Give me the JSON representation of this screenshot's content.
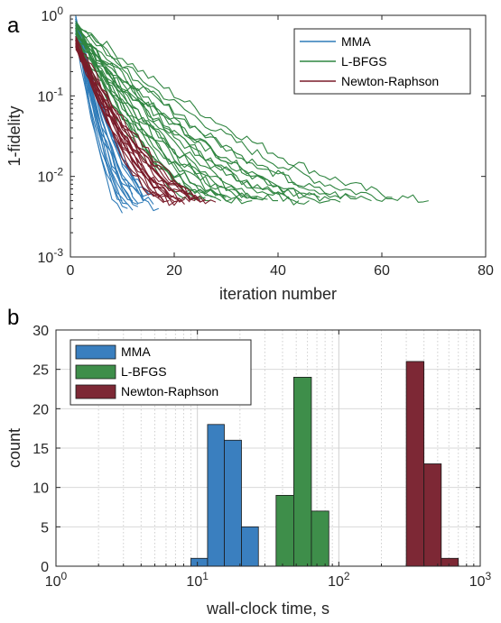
{
  "chart_data": [
    {
      "panel": "a",
      "type": "line",
      "xlabel": "iteration number",
      "ylabel": "1-fidelity",
      "xlim": [
        0,
        80
      ],
      "ylim": [
        0.001,
        1
      ],
      "yscale": "log",
      "xticks": [
        0,
        20,
        40,
        60,
        80
      ],
      "yticks": [
        {
          "base": "10",
          "exp": "0"
        },
        {
          "base": "10",
          "exp": "-1"
        },
        {
          "base": "10",
          "exp": "-2"
        },
        {
          "base": "10",
          "exp": "-3"
        }
      ],
      "grid": false,
      "legend": "top-right",
      "series": [
        {
          "name": "MMA",
          "color": "#2F7BB8",
          "curves": [
            {
              "start": 1.0,
              "iters": 10,
              "end": 0.0035
            },
            {
              "start": 0.9,
              "iters": 11,
              "end": 0.0045
            },
            {
              "start": 0.8,
              "iters": 12,
              "end": 0.006
            },
            {
              "start": 0.95,
              "iters": 13,
              "end": 0.0045
            },
            {
              "start": 0.7,
              "iters": 12,
              "end": 0.005
            },
            {
              "start": 0.85,
              "iters": 14,
              "end": 0.0055
            },
            {
              "start": 0.6,
              "iters": 11,
              "end": 0.004
            },
            {
              "start": 0.75,
              "iters": 15,
              "end": 0.006
            },
            {
              "start": 0.9,
              "iters": 16,
              "end": 0.0045
            },
            {
              "start": 0.65,
              "iters": 13,
              "end": 0.0065
            },
            {
              "start": 0.8,
              "iters": 17,
              "end": 0.004
            },
            {
              "start": 0.55,
              "iters": 10,
              "end": 0.005
            },
            {
              "start": 0.7,
              "iters": 12,
              "end": 0.0038
            },
            {
              "start": 0.85,
              "iters": 14,
              "end": 0.0048
            },
            {
              "start": 0.6,
              "iters": 16,
              "end": 0.0058
            },
            {
              "start": 1.0,
              "iters": 11,
              "end": 0.0052
            },
            {
              "start": 0.75,
              "iters": 13,
              "end": 0.0042
            },
            {
              "start": 0.9,
              "iters": 15,
              "end": 0.0065
            }
          ]
        },
        {
          "name": "L-BFGS",
          "color": "#2F8540",
          "curves": [
            {
              "start": 0.85,
              "iters": 69,
              "end": 0.005
            },
            {
              "start": 0.75,
              "iters": 62,
              "end": 0.0055
            },
            {
              "start": 0.6,
              "iters": 58,
              "end": 0.005
            },
            {
              "start": 0.8,
              "iters": 55,
              "end": 0.0055
            },
            {
              "start": 0.55,
              "iters": 52,
              "end": 0.0048
            },
            {
              "start": 0.7,
              "iters": 50,
              "end": 0.005
            },
            {
              "start": 0.65,
              "iters": 48,
              "end": 0.0055
            },
            {
              "start": 0.5,
              "iters": 46,
              "end": 0.005
            },
            {
              "start": 0.78,
              "iters": 44,
              "end": 0.005
            },
            {
              "start": 0.6,
              "iters": 42,
              "end": 0.0055
            },
            {
              "start": 0.72,
              "iters": 40,
              "end": 0.005
            },
            {
              "start": 0.45,
              "iters": 38,
              "end": 0.0052
            },
            {
              "start": 0.68,
              "iters": 36,
              "end": 0.0055
            },
            {
              "start": 0.58,
              "iters": 35,
              "end": 0.005
            },
            {
              "start": 0.8,
              "iters": 34,
              "end": 0.0055
            },
            {
              "start": 0.52,
              "iters": 33,
              "end": 0.005
            },
            {
              "start": 0.7,
              "iters": 31,
              "end": 0.0052
            },
            {
              "start": 0.62,
              "iters": 30,
              "end": 0.0055
            },
            {
              "start": 0.48,
              "iters": 29,
              "end": 0.005
            },
            {
              "start": 0.75,
              "iters": 28,
              "end": 0.0055
            },
            {
              "start": 0.55,
              "iters": 27,
              "end": 0.005
            },
            {
              "start": 0.66,
              "iters": 26,
              "end": 0.0055
            },
            {
              "start": 0.72,
              "iters": 25,
              "end": 0.006
            },
            {
              "start": 0.5,
              "iters": 24,
              "end": 0.0055
            }
          ]
        },
        {
          "name": "Newton-Raphson",
          "color": "#7A1C2A",
          "curves": [
            {
              "start": 0.5,
              "iters": 18,
              "end": 0.005
            },
            {
              "start": 0.45,
              "iters": 19,
              "end": 0.0055
            },
            {
              "start": 0.55,
              "iters": 20,
              "end": 0.0048
            },
            {
              "start": 0.4,
              "iters": 21,
              "end": 0.005
            },
            {
              "start": 0.5,
              "iters": 22,
              "end": 0.0052
            },
            {
              "start": 0.42,
              "iters": 23,
              "end": 0.0048
            },
            {
              "start": 0.48,
              "iters": 24,
              "end": 0.0055
            },
            {
              "start": 0.52,
              "iters": 25,
              "end": 0.005
            },
            {
              "start": 0.38,
              "iters": 26,
              "end": 0.0052
            },
            {
              "start": 0.46,
              "iters": 28,
              "end": 0.0048
            },
            {
              "start": 0.5,
              "iters": 20,
              "end": 0.0058
            },
            {
              "start": 0.44,
              "iters": 22,
              "end": 0.0045
            },
            {
              "start": 0.5,
              "iters": 19,
              "end": 0.005
            },
            {
              "start": 0.47,
              "iters": 21,
              "end": 0.0053
            },
            {
              "start": 0.43,
              "iters": 24,
              "end": 0.005
            },
            {
              "start": 0.49,
              "iters": 18,
              "end": 0.0047
            },
            {
              "start": 0.41,
              "iters": 23,
              "end": 0.0056
            },
            {
              "start": 0.53,
              "iters": 26,
              "end": 0.0051
            }
          ]
        }
      ]
    },
    {
      "panel": "b",
      "type": "bar",
      "subtype": "histogram",
      "xlabel": "wall-clock time, s",
      "ylabel": "count",
      "xscale": "log",
      "xlim": [
        1,
        1000
      ],
      "ylim": [
        0,
        30
      ],
      "yticks": [
        0,
        5,
        10,
        15,
        20,
        25,
        30
      ],
      "xticks": [
        {
          "base": "10",
          "exp": "0"
        },
        {
          "base": "10",
          "exp": "1"
        },
        {
          "base": "10",
          "exp": "2"
        },
        {
          "base": "10",
          "exp": "3"
        }
      ],
      "grid": true,
      "legend": "top-left",
      "series": [
        {
          "name": "MMA",
          "color": "#3A7FBF",
          "bins": [
            {
              "x0": 9.0,
              "x1": 11.8,
              "count": 1
            },
            {
              "x0": 11.8,
              "x1": 15.5,
              "count": 18
            },
            {
              "x0": 15.5,
              "x1": 20.5,
              "count": 16
            },
            {
              "x0": 20.5,
              "x1": 27.0,
              "count": 5
            }
          ]
        },
        {
          "name": "L-BFGS",
          "color": "#3E8E4A",
          "bins": [
            {
              "x0": 27.0,
              "x1": 36.0,
              "count": 0
            },
            {
              "x0": 36.0,
              "x1": 48.0,
              "count": 9
            },
            {
              "x0": 48.0,
              "x1": 64.0,
              "count": 24
            },
            {
              "x0": 64.0,
              "x1": 85.0,
              "count": 7
            }
          ]
        },
        {
          "name": "Newton-Raphson",
          "color": "#7D2835",
          "bins": [
            {
              "x0": 300,
              "x1": 400,
              "count": 26
            },
            {
              "x0": 400,
              "x1": 530,
              "count": 13
            },
            {
              "x0": 530,
              "x1": 700,
              "count": 1
            }
          ]
        }
      ]
    }
  ],
  "labels": {
    "panel_a": "a",
    "panel_b": "b"
  }
}
